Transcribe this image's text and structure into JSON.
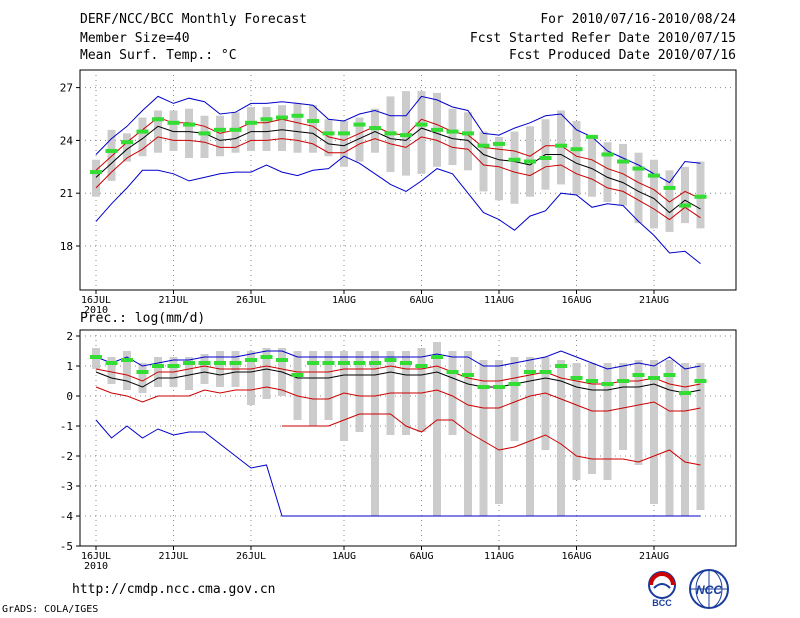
{
  "header": {
    "title": "DERF/NCC/BCC Monthly Forecast",
    "member_size": "Member Size=40",
    "variable": "Mean Surf. Temp.: °C",
    "period": "For 2010/07/16-2010/08/24",
    "refer_date": "Fcst Started Refer Date 2010/07/15",
    "produced_date": "Fcst Produced Date 2010/07/16"
  },
  "footer": {
    "url": "http://cmdp.ncc.cma.gov.cn",
    "credit": "GrADS: COLA/IGES",
    "logo1_text": "BCC",
    "logo2_text": "NCC"
  },
  "colors": {
    "max_min": "#0000cc",
    "pct": "#cc0000",
    "mean": "#000000",
    "median": "#33dd33",
    "box": "#cccccc",
    "grid": "#888888"
  },
  "chart_data": [
    {
      "type": "line",
      "title": "Mean Surf. Temp.: °C",
      "x_ticks": [
        "16JUL",
        "21JUL",
        "26JUL",
        "1AUG",
        "6AUG",
        "11AUG",
        "16AUG",
        "21AUG"
      ],
      "x_tick_days": [
        0,
        5,
        10,
        16,
        21,
        26,
        31,
        36
      ],
      "x_sublabel": "2010",
      "ylim": [
        15.5,
        28
      ],
      "y_ticks": [
        "18",
        "21",
        "24",
        "27"
      ],
      "series": [
        {
          "name": "max",
          "values": [
            23.2,
            24.1,
            24.8,
            25.7,
            26.5,
            26.1,
            26.4,
            26.2,
            25.5,
            25.6,
            26.1,
            26.1,
            26.2,
            26.1,
            26.0,
            25.2,
            25.1,
            25.5,
            25.7,
            25.4,
            25.4,
            26.5,
            26.3,
            25.9,
            25.7,
            24.4,
            24.3,
            24.7,
            25.0,
            25.4,
            25.5,
            24.6,
            24.2,
            23.4,
            23.0,
            22.6,
            22.1,
            21.6,
            22.8,
            22.7
          ]
        },
        {
          "name": "p80",
          "values": [
            22.3,
            23.1,
            23.9,
            24.6,
            25.3,
            25.0,
            25.0,
            24.8,
            24.4,
            24.6,
            25.0,
            25.0,
            25.2,
            25.0,
            24.8,
            24.2,
            24.0,
            24.4,
            24.8,
            24.4,
            24.3,
            25.2,
            24.9,
            24.5,
            24.3,
            23.6,
            23.5,
            23.4,
            23.1,
            23.7,
            23.7,
            23.1,
            22.9,
            22.4,
            22.1,
            21.6,
            21.2,
            20.5,
            21.1,
            20.7
          ]
        },
        {
          "name": "mean",
          "values": [
            21.9,
            22.7,
            23.5,
            24.1,
            24.8,
            24.5,
            24.5,
            24.4,
            24.0,
            24.1,
            24.5,
            24.5,
            24.6,
            24.5,
            24.4,
            23.8,
            23.7,
            24.1,
            24.5,
            24.1,
            24.0,
            24.7,
            24.4,
            24.1,
            24.0,
            23.2,
            22.9,
            22.8,
            22.6,
            23.2,
            23.2,
            22.7,
            22.4,
            21.9,
            21.6,
            21.1,
            20.7,
            19.9,
            20.6,
            20.1
          ]
        },
        {
          "name": "p20",
          "values": [
            21.3,
            22.2,
            23.0,
            23.5,
            24.2,
            24.0,
            24.0,
            23.9,
            23.6,
            23.6,
            24.0,
            24.0,
            24.1,
            24.0,
            23.8,
            23.3,
            23.3,
            23.8,
            24.1,
            23.8,
            23.6,
            24.2,
            24.0,
            23.6,
            23.5,
            22.6,
            22.5,
            22.2,
            22.0,
            22.5,
            22.6,
            22.1,
            21.8,
            21.3,
            21.1,
            20.6,
            20.1,
            19.5,
            20.2,
            19.6
          ]
        },
        {
          "name": "min",
          "values": [
            19.4,
            20.4,
            21.3,
            22.3,
            22.3,
            22.1,
            21.7,
            21.9,
            22.1,
            22.2,
            22.2,
            22.6,
            22.2,
            22.0,
            22.3,
            22.4,
            23.1,
            22.7,
            22.1,
            21.5,
            21.1,
            21.7,
            22.4,
            22.1,
            21.0,
            19.9,
            19.5,
            18.9,
            19.7,
            20.0,
            21.0,
            20.9,
            20.2,
            20.4,
            20.3,
            19.4,
            18.6,
            17.6,
            17.7,
            17.0
          ]
        },
        {
          "name": "median",
          "values": [
            22.2,
            23.4,
            23.9,
            24.5,
            25.2,
            25.0,
            24.9,
            24.4,
            24.6,
            24.6,
            25.0,
            25.2,
            25.3,
            25.4,
            25.1,
            24.4,
            24.4,
            24.9,
            24.7,
            24.4,
            24.3,
            24.9,
            24.6,
            24.5,
            24.4,
            23.7,
            23.8,
            22.9,
            22.8,
            23.0,
            23.7,
            23.5,
            24.2,
            23.2,
            22.8,
            22.4,
            22.0,
            21.3,
            20.3,
            20.8
          ]
        }
      ],
      "box_top": [
        22.9,
        24.6,
        24.4,
        25.3,
        25.7,
        25.7,
        25.8,
        25.4,
        25.4,
        25.6,
        25.9,
        25.9,
        26.0,
        26.1,
        26.0,
        25.2,
        25.1,
        25.3,
        25.8,
        26.5,
        26.8,
        26.8,
        26.7,
        25.8,
        25.6,
        24.5,
        24.2,
        24.5,
        24.8,
        25.2,
        25.7,
        25.1,
        24.2,
        23.9,
        23.8,
        23.3,
        22.9,
        22.3,
        22.5,
        22.8
      ],
      "box_bottom": [
        20.8,
        21.7,
        22.8,
        23.1,
        23.3,
        23.4,
        23.0,
        23.0,
        23.1,
        23.3,
        23.4,
        23.4,
        23.4,
        23.3,
        23.3,
        23.1,
        22.5,
        22.8,
        23.3,
        22.2,
        22.0,
        22.1,
        22.5,
        22.6,
        22.3,
        21.1,
        20.6,
        20.4,
        20.8,
        21.2,
        21.5,
        20.9,
        20.8,
        20.5,
        20.3,
        19.3,
        19.0,
        18.8,
        19.3,
        19.0
      ]
    },
    {
      "type": "line",
      "title": "Prec.: log(mm/d)",
      "x_ticks": [
        "16JUL",
        "21JUL",
        "26JUL",
        "1AUG",
        "6AUG",
        "11AUG",
        "16AUG",
        "21AUG"
      ],
      "x_tick_days": [
        0,
        5,
        10,
        16,
        21,
        26,
        31,
        36
      ],
      "x_sublabel": "2010",
      "ylim": [
        -5,
        2.2
      ],
      "y_ticks": [
        "-5",
        "-4",
        "-3",
        "-2",
        "-1",
        "0",
        "1",
        "2"
      ],
      "series": [
        {
          "name": "max",
          "values": [
            1.3,
            1.1,
            1.3,
            1.0,
            1.1,
            1.2,
            1.2,
            1.3,
            1.3,
            1.3,
            1.4,
            1.5,
            1.5,
            1.3,
            1.3,
            1.3,
            1.3,
            1.3,
            1.3,
            1.3,
            1.3,
            1.3,
            1.4,
            1.3,
            1.3,
            1.0,
            1.0,
            1.1,
            1.2,
            1.3,
            1.5,
            1.3,
            1.1,
            0.9,
            1.0,
            1.1,
            1.0,
            1.3,
            0.9,
            1.0
          ]
        },
        {
          "name": "p80",
          "values": [
            0.9,
            0.8,
            0.7,
            0.5,
            0.8,
            0.8,
            0.9,
            1.0,
            0.9,
            0.9,
            0.9,
            1.0,
            0.9,
            0.8,
            0.8,
            0.8,
            0.9,
            0.9,
            0.9,
            1.0,
            0.9,
            0.9,
            1.0,
            0.8,
            0.6,
            0.5,
            0.5,
            0.6,
            0.7,
            0.8,
            0.6,
            0.5,
            0.4,
            0.4,
            0.5,
            0.5,
            0.6,
            0.4,
            0.3,
            0.4
          ]
        },
        {
          "name": "mean",
          "values": [
            0.8,
            0.6,
            0.5,
            0.3,
            0.6,
            0.6,
            0.7,
            0.8,
            0.7,
            0.8,
            0.8,
            0.9,
            0.8,
            0.6,
            0.6,
            0.6,
            0.7,
            0.7,
            0.7,
            0.8,
            0.7,
            0.7,
            0.8,
            0.6,
            0.4,
            0.3,
            0.3,
            0.4,
            0.5,
            0.6,
            0.5,
            0.3,
            0.2,
            0.2,
            0.3,
            0.3,
            0.4,
            0.2,
            0.1,
            0.2
          ]
        },
        {
          "name": "p20",
          "values": [
            0.3,
            0.1,
            0.0,
            -0.2,
            0.0,
            0.0,
            0.0,
            0.2,
            0.1,
            0.2,
            0.2,
            0.3,
            0.2,
            0.0,
            -0.1,
            -0.1,
            0.1,
            0.0,
            0.0,
            0.1,
            0.1,
            0.1,
            0.2,
            0.0,
            -0.3,
            -0.4,
            -0.4,
            -0.2,
            0.0,
            0.1,
            -0.1,
            -0.3,
            -0.5,
            -0.5,
            -0.4,
            -0.3,
            -0.2,
            -0.5,
            -0.5,
            -0.4
          ]
        },
        {
          "name": "min",
          "values": [
            -0.8,
            -1.4,
            -1.0,
            -1.4,
            -1.1,
            -1.3,
            -1.2,
            -1.2,
            -1.6,
            -2.0,
            -2.4,
            -2.3,
            -4.0,
            -4.0,
            -4.0,
            -4.0,
            -4.0,
            -4.0,
            -4.0,
            -4.0,
            -4.0,
            -4.0,
            -4.0,
            -4.0,
            -4.0,
            -4.0,
            -4.0,
            -4.0,
            -4.0,
            -4.0,
            -4.0,
            -4.0,
            -4.0,
            -4.0,
            -4.0,
            -4.0,
            -4.0,
            -4.0,
            -4.0,
            -4.0
          ]
        },
        {
          "name": "p_low",
          "values": [
            null,
            null,
            null,
            null,
            null,
            null,
            null,
            null,
            null,
            null,
            null,
            null,
            -1.0,
            -1.0,
            -1.0,
            -1.0,
            -0.8,
            -0.6,
            -0.6,
            -0.6,
            -1.0,
            -1.2,
            -0.8,
            -0.8,
            -1.2,
            -1.5,
            -1.8,
            -1.7,
            -1.5,
            -1.3,
            -1.6,
            -2.0,
            -2.1,
            -2.1,
            -2.1,
            -2.2,
            -2.0,
            -1.8,
            -2.2,
            -2.3
          ]
        },
        {
          "name": "median",
          "values": [
            1.3,
            1.1,
            1.2,
            0.8,
            1.0,
            1.0,
            1.1,
            1.1,
            1.1,
            1.1,
            1.2,
            1.3,
            1.2,
            0.7,
            1.1,
            1.1,
            1.1,
            1.1,
            1.1,
            1.2,
            1.1,
            1.0,
            1.3,
            0.8,
            0.7,
            0.3,
            0.3,
            0.4,
            0.8,
            0.8,
            1.0,
            0.6,
            0.5,
            0.4,
            0.5,
            0.7,
            0.6,
            0.7,
            0.1,
            0.5
          ]
        }
      ],
      "box_top": [
        1.6,
        1.3,
        1.5,
        1.1,
        1.3,
        1.3,
        1.3,
        1.4,
        1.5,
        1.5,
        1.5,
        1.6,
        1.6,
        1.5,
        1.5,
        1.5,
        1.5,
        1.5,
        1.5,
        1.5,
        1.5,
        1.6,
        1.8,
        1.5,
        1.5,
        1.2,
        1.2,
        1.3,
        1.3,
        1.3,
        1.2,
        1.1,
        1.1,
        1.1,
        1.1,
        1.2,
        1.2,
        1.2,
        1.1,
        1.1
      ],
      "box_bottom": [
        0.9,
        0.4,
        0.2,
        0.1,
        0.3,
        0.3,
        0.2,
        0.4,
        0.3,
        0.3,
        -0.3,
        -0.1,
        0.0,
        -0.8,
        -1.0,
        -0.8,
        -1.5,
        -1.2,
        -4.0,
        -1.3,
        -1.3,
        -1.2,
        -4.0,
        -1.3,
        -4.0,
        -4.0,
        -3.6,
        -1.5,
        -4.0,
        -1.8,
        -4.0,
        -2.8,
        -2.6,
        -2.8,
        -1.8,
        -2.3,
        -3.6,
        -4.0,
        -4.0,
        -3.8
      ]
    }
  ]
}
